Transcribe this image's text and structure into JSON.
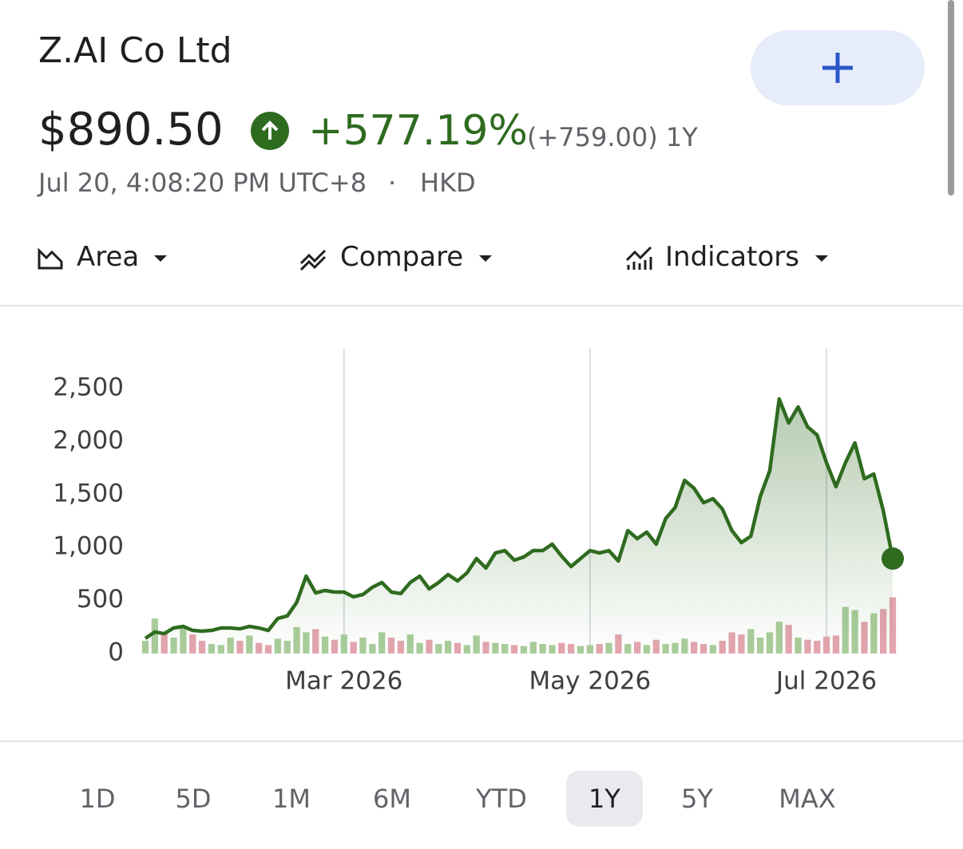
{
  "header": {
    "title": "Z.AI Co Ltd",
    "price": "$890.50",
    "change_percent": "+577.19%",
    "change": "(+759.00) 1Y",
    "timestamp": "Jul 20, 4:08:20 PM UTC+8",
    "separator": "·",
    "currency": "HKD"
  },
  "toolbar": [
    "Area",
    "Compare",
    "Indicators"
  ],
  "chart_data": {
    "type": "area",
    "categories": [
      null,
      null,
      null,
      null,
      null,
      null,
      null,
      null,
      null,
      null,
      null,
      null,
      null,
      null,
      null,
      null,
      null,
      null,
      null,
      null,
      null,
      "Mar 2026",
      null,
      null,
      null,
      null,
      null,
      null,
      null,
      null,
      null,
      null,
      null,
      null,
      null,
      null,
      null,
      null,
      null,
      null,
      null,
      null,
      null,
      null,
      null,
      null,
      null,
      "May 2026",
      null,
      null,
      null,
      null,
      null,
      null,
      null,
      null,
      null,
      null,
      null,
      null,
      null,
      null,
      null,
      null,
      null,
      null,
      null,
      null,
      null,
      null,
      null,
      null,
      "Jul 2026",
      null,
      null,
      null,
      null,
      null,
      null,
      null
    ],
    "values": [
      143,
      203,
      188,
      241,
      256,
      218,
      211,
      218,
      241,
      241,
      233,
      256,
      241,
      218,
      331,
      354,
      482,
      730,
      572,
      595,
      580,
      580,
      535,
      557,
      625,
      670,
      580,
      565,
      670,
      730,
      610,
      670,
      745,
      685,
      761,
      896,
      806,
      949,
      971,
      881,
      911,
      971,
      971,
      1032,
      919,
      821,
      896,
      971,
      949,
      971,
      873,
      1160,
      1084,
      1145,
      1032,
      1273,
      1378,
      1634,
      1559,
      1423,
      1461,
      1363,
      1160,
      1047,
      1107,
      1483,
      1724,
      2402,
      2176,
      2327,
      2139,
      2063,
      1800,
      1574,
      1800,
      1988,
      1649,
      1694,
      1348,
      896
    ],
    "color": "#2e6b1f",
    "volumes": [
      120,
      330,
      190,
      150,
      250,
      180,
      120,
      90,
      80,
      150,
      120,
      170,
      100,
      80,
      140,
      120,
      250,
      200,
      230,
      160,
      130,
      180,
      110,
      150,
      90,
      200,
      150,
      120,
      180,
      100,
      130,
      90,
      120,
      100,
      80,
      170,
      110,
      100,
      90,
      80,
      70,
      110,
      90,
      80,
      100,
      90,
      70,
      80,
      90,
      100,
      180,
      90,
      110,
      80,
      130,
      90,
      100,
      140,
      110,
      90,
      80,
      120,
      200,
      180,
      230,
      150,
      200,
      300,
      270,
      150,
      130,
      120,
      160,
      170,
      440,
      410,
      300,
      380,
      420,
      530
    ],
    "up_color": "#a9cc9b",
    "down_color": "#e3a5ae",
    "ylim": [
      0,
      2500
    ],
    "yticks": [
      0,
      500,
      {
        "value": 1000,
        "label": "1,000"
      },
      {
        "value": 1500,
        "label": "1,500"
      },
      {
        "value": 2000,
        "label": "2,000"
      },
      {
        "value": 2500,
        "label": "2,500"
      }
    ],
    "grid": true
  },
  "ranges": [
    "1D",
    "5D",
    "1M",
    "6M",
    "YTD",
    "1Y",
    "5Y",
    "MAX"
  ],
  "selected_range": "1Y"
}
